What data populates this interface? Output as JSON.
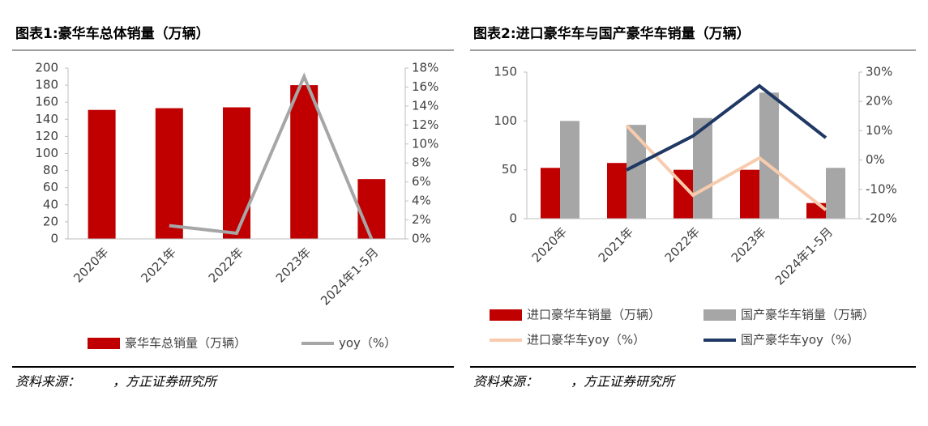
{
  "chart_data": [
    {
      "type": "bar",
      "title": "图表1:豪华车总体销量（万辆）",
      "categories": [
        "2020年",
        "2021年",
        "2022年",
        "2023年",
        "2024年1-5月"
      ],
      "series": [
        {
          "name": "豪华车总销量（万辆）",
          "color": "#c00000",
          "type": "bar",
          "values": [
            151,
            153,
            154,
            180,
            70
          ]
        },
        {
          "name": "yoy（%）",
          "color": "#a6a6a6",
          "type": "line",
          "axis": "y2",
          "values": [
            null,
            1.4,
            0.6,
            17.1,
            0
          ]
        }
      ],
      "ylim": [
        0,
        200
      ],
      "yticks": [
        0,
        20,
        40,
        60,
        80,
        100,
        120,
        140,
        160,
        180,
        200
      ],
      "y2lim": [
        0,
        18
      ],
      "y2ticks": [
        {
          "value": 0,
          "label": "0%"
        },
        {
          "value": 2,
          "label": "2%"
        },
        {
          "value": 4,
          "label": "4%"
        },
        {
          "value": 6,
          "label": "6%"
        },
        {
          "value": 8,
          "label": "8%"
        },
        {
          "value": 10,
          "label": "10%"
        },
        {
          "value": 12,
          "label": "12%"
        },
        {
          "value": 14,
          "label": "14%"
        },
        {
          "value": 16,
          "label": "16%"
        },
        {
          "value": 18,
          "label": "18%"
        }
      ],
      "source": "资料来源：　　　，方正证券研究所"
    },
    {
      "type": "bar",
      "title": "图表2:进口豪华车与国产豪华车销量（万辆）",
      "categories": [
        "2020年",
        "2021年",
        "2022年",
        "2023年",
        "2024年1-5月"
      ],
      "series": [
        {
          "name": "进口豪华车销量（万辆）",
          "color": "#c00000",
          "type": "bar",
          "values": [
            52,
            57,
            50,
            50,
            16
          ]
        },
        {
          "name": "国产豪华车销量（万辆）",
          "color": "#a6a6a6",
          "type": "bar",
          "values": [
            100,
            96,
            103,
            129,
            52
          ]
        },
        {
          "name": "进口豪华车yoy（%）",
          "color": "#f8cbad",
          "type": "line",
          "axis": "y2",
          "values": [
            null,
            11.8,
            -12,
            0.7,
            -17
          ]
        },
        {
          "name": "国产豪华车yoy（%）",
          "color": "#1f3864",
          "type": "line",
          "axis": "y2",
          "values": [
            null,
            -3.4,
            8.2,
            25.3,
            7.6
          ]
        }
      ],
      "ylim": [
        0,
        150
      ],
      "yticks": [
        0,
        50,
        100,
        150
      ],
      "y2lim": [
        -20,
        30
      ],
      "y2ticks": [
        {
          "value": -20,
          "label": "-20%"
        },
        {
          "value": -10,
          "label": "-10%"
        },
        {
          "value": 0,
          "label": "0%"
        },
        {
          "value": 10,
          "label": "10%"
        },
        {
          "value": 20,
          "label": "20%"
        },
        {
          "value": 30,
          "label": "30%"
        }
      ],
      "source": "资料来源：　　　，方正证券研究所"
    }
  ]
}
